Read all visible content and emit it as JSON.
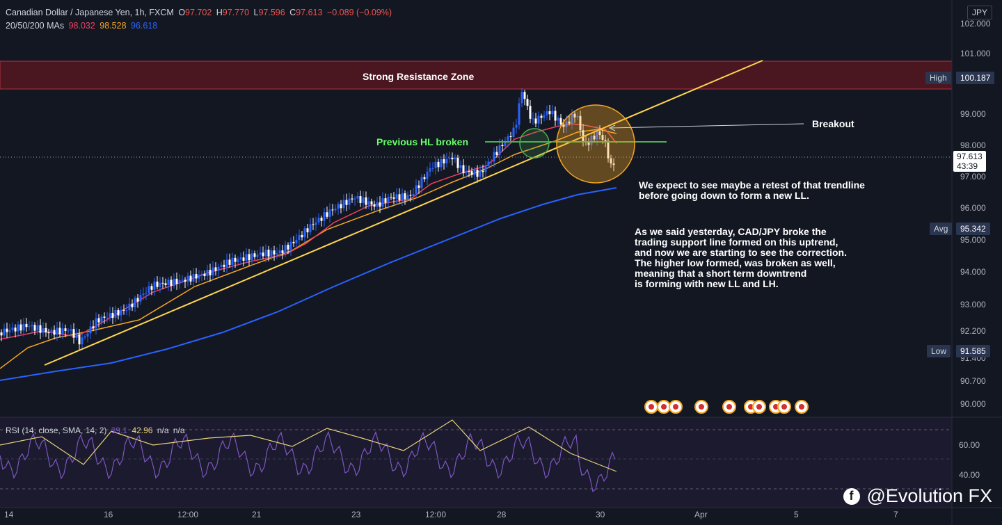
{
  "header": {
    "symbol": "Canadian Dollar / Japanese Yen, 1h, FXCM",
    "open_label": "O",
    "open": "97.702",
    "high_label": "H",
    "high": "97.770",
    "low_label": "L",
    "low": "97.596",
    "close_label": "C",
    "close": "97.613",
    "change": "−0.089 (−0.09%)",
    "ma_label": "20/50/200 MAs",
    "ma20": "98.032",
    "ma50": "98.528",
    "ma200": "96.618"
  },
  "currency": "JPY",
  "price_axis": [
    "102.000",
    "101.000",
    "99.000",
    "98.000",
    "97.000",
    "96.000",
    "95.000",
    "94.000",
    "93.000",
    "92.200",
    "91.400",
    "90.700",
    "90.000"
  ],
  "time_axis": [
    "14",
    "16",
    "12:00",
    "21",
    "23",
    "12:00",
    "28",
    "30",
    "Apr",
    "5",
    "7"
  ],
  "markers": {
    "high_label": "High",
    "high_value": "100.187",
    "avg_label": "Avg",
    "avg_value": "95.342",
    "low_label": "Low",
    "low_value": "91.585",
    "last_price": "97.613",
    "countdown": "43:39"
  },
  "rsi": {
    "label": "RSI (14, close, SMA, 14, 2)",
    "value1": "39.1",
    "value2": "42.96",
    "na1": "n/a",
    "na2": "n/a",
    "axis": [
      "60.00",
      "40.00"
    ]
  },
  "annotations": {
    "resistance": "Strong Resistance Zone",
    "hl_broken": "Previous HL broken",
    "breakout": "Breakout",
    "retest": "We expect to see maybe a retest of that trendline\nbefore going down to form a new LL.",
    "analysis": "As we said yesterday, CAD/JPY broke the\ntrading support line formed on this uptrend,\nand now we are starting to see the correction.\nThe higher low formed, was broken as well,\nmeaning that a short term downtrend\nis forming with new LL and LH."
  },
  "watermark": "@Evolution FX",
  "colors": {
    "bg": "#131722",
    "ma20": "#ef4061",
    "ma50": "#f5a623",
    "ma200": "#2962ff",
    "trend": "#ffd54f",
    "hline": "#4caf50",
    "resistance": "#6b1f2a",
    "rsi": "#7e57c2"
  }
}
